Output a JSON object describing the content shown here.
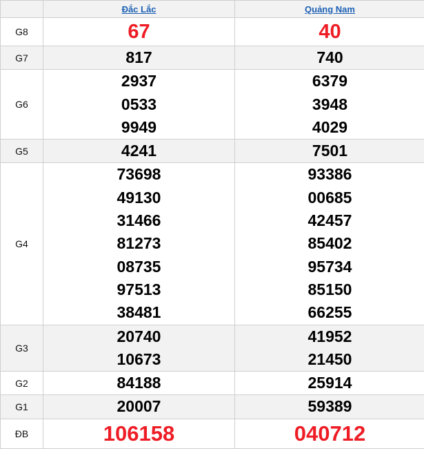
{
  "header": {
    "provinces": [
      "Đắc Lắc",
      "Quảng Nam"
    ]
  },
  "accent_color": "#ee1c25",
  "link_color": "#1a5fb4",
  "rows": [
    {
      "label": "G8",
      "values": [
        [
          "67"
        ],
        [
          "40"
        ]
      ]
    },
    {
      "label": "G7",
      "values": [
        [
          "817"
        ],
        [
          "740"
        ]
      ]
    },
    {
      "label": "G6",
      "values": [
        [
          "2937",
          "0533",
          "9949"
        ],
        [
          "6379",
          "3948",
          "4029"
        ]
      ]
    },
    {
      "label": "G5",
      "values": [
        [
          "4241"
        ],
        [
          "7501"
        ]
      ]
    },
    {
      "label": "G4",
      "values": [
        [
          "73698",
          "49130",
          "31466",
          "81273",
          "08735",
          "97513",
          "38481"
        ],
        [
          "93386",
          "00685",
          "42457",
          "85402",
          "95734",
          "85150",
          "66255"
        ]
      ]
    },
    {
      "label": "G3",
      "values": [
        [
          "20740",
          "10673"
        ],
        [
          "41952",
          "21450"
        ]
      ]
    },
    {
      "label": "G2",
      "values": [
        [
          "84188"
        ],
        [
          "25914"
        ]
      ]
    },
    {
      "label": "G1",
      "values": [
        [
          "20007"
        ],
        [
          "59389"
        ]
      ]
    },
    {
      "label": "ĐB",
      "values": [
        [
          "106158"
        ],
        [
          "040712"
        ]
      ]
    }
  ]
}
